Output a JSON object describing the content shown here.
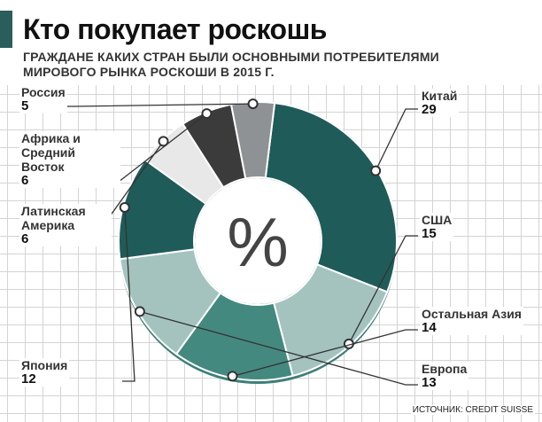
{
  "header": {
    "title": "Кто покупает роскошь",
    "subtitle": "Граждане каких стран были основными потребителями мирового рынка роскоши в 2015 г."
  },
  "center_symbol": "%",
  "source": "ИСТОЧНИК: CREDIT SUISSE",
  "chart_data": {
    "type": "pie",
    "donut": true,
    "unit": "%",
    "slices": [
      {
        "label": "Китай",
        "value": 29,
        "color": "#1f5b59"
      },
      {
        "label": "США",
        "value": 15,
        "color": "#a4c3bf"
      },
      {
        "label": "Остальная Азия",
        "value": 14,
        "color": "#44897f"
      },
      {
        "label": "Европа",
        "value": 13,
        "color": "#a4c3bf"
      },
      {
        "label": "Япония",
        "value": 12,
        "color": "#1f5b59"
      },
      {
        "label": "Латинская Америка",
        "value": 6,
        "color": "#e8e8e8"
      },
      {
        "label": "Африка и Средний Восток",
        "value": 6,
        "color": "#3b3b3b"
      },
      {
        "label": "Россия",
        "value": 5,
        "color": "#8f9294"
      }
    ]
  }
}
